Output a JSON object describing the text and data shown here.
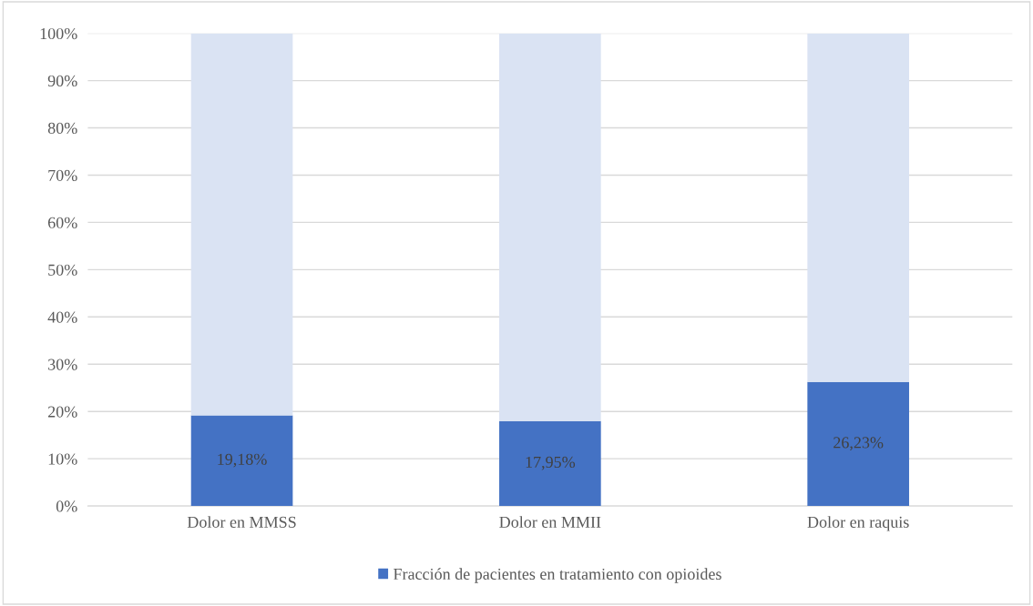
{
  "chart_data": {
    "type": "bar",
    "stacked": true,
    "categories": [
      "Dolor en MMSS",
      "Dolor en MMII",
      "Dolor en raquis"
    ],
    "series": [
      {
        "name": "Fracción de pacientes en tratamiento con opioides",
        "color": "#4472c4",
        "values": [
          19.18,
          17.95,
          26.23
        ],
        "value_labels": [
          "19,18%",
          "17,95%",
          "26,23%"
        ]
      },
      {
        "color": "#dae3f3",
        "values": [
          80.82,
          82.05,
          73.77
        ]
      }
    ],
    "ylim": [
      0,
      100
    ],
    "yticks": [
      {
        "value": 0,
        "label": "0%"
      },
      {
        "value": 10,
        "label": "10%"
      },
      {
        "value": 20,
        "label": "20%"
      },
      {
        "value": 30,
        "label": "30%"
      },
      {
        "value": 40,
        "label": "40%"
      },
      {
        "value": 50,
        "label": "50%"
      },
      {
        "value": 60,
        "label": "60%"
      },
      {
        "value": 70,
        "label": "70%"
      },
      {
        "value": 80,
        "label": "80%"
      },
      {
        "value": 90,
        "label": "90%"
      },
      {
        "value": 100,
        "label": "100%"
      }
    ],
    "grid": "y",
    "legend": "bottom"
  }
}
